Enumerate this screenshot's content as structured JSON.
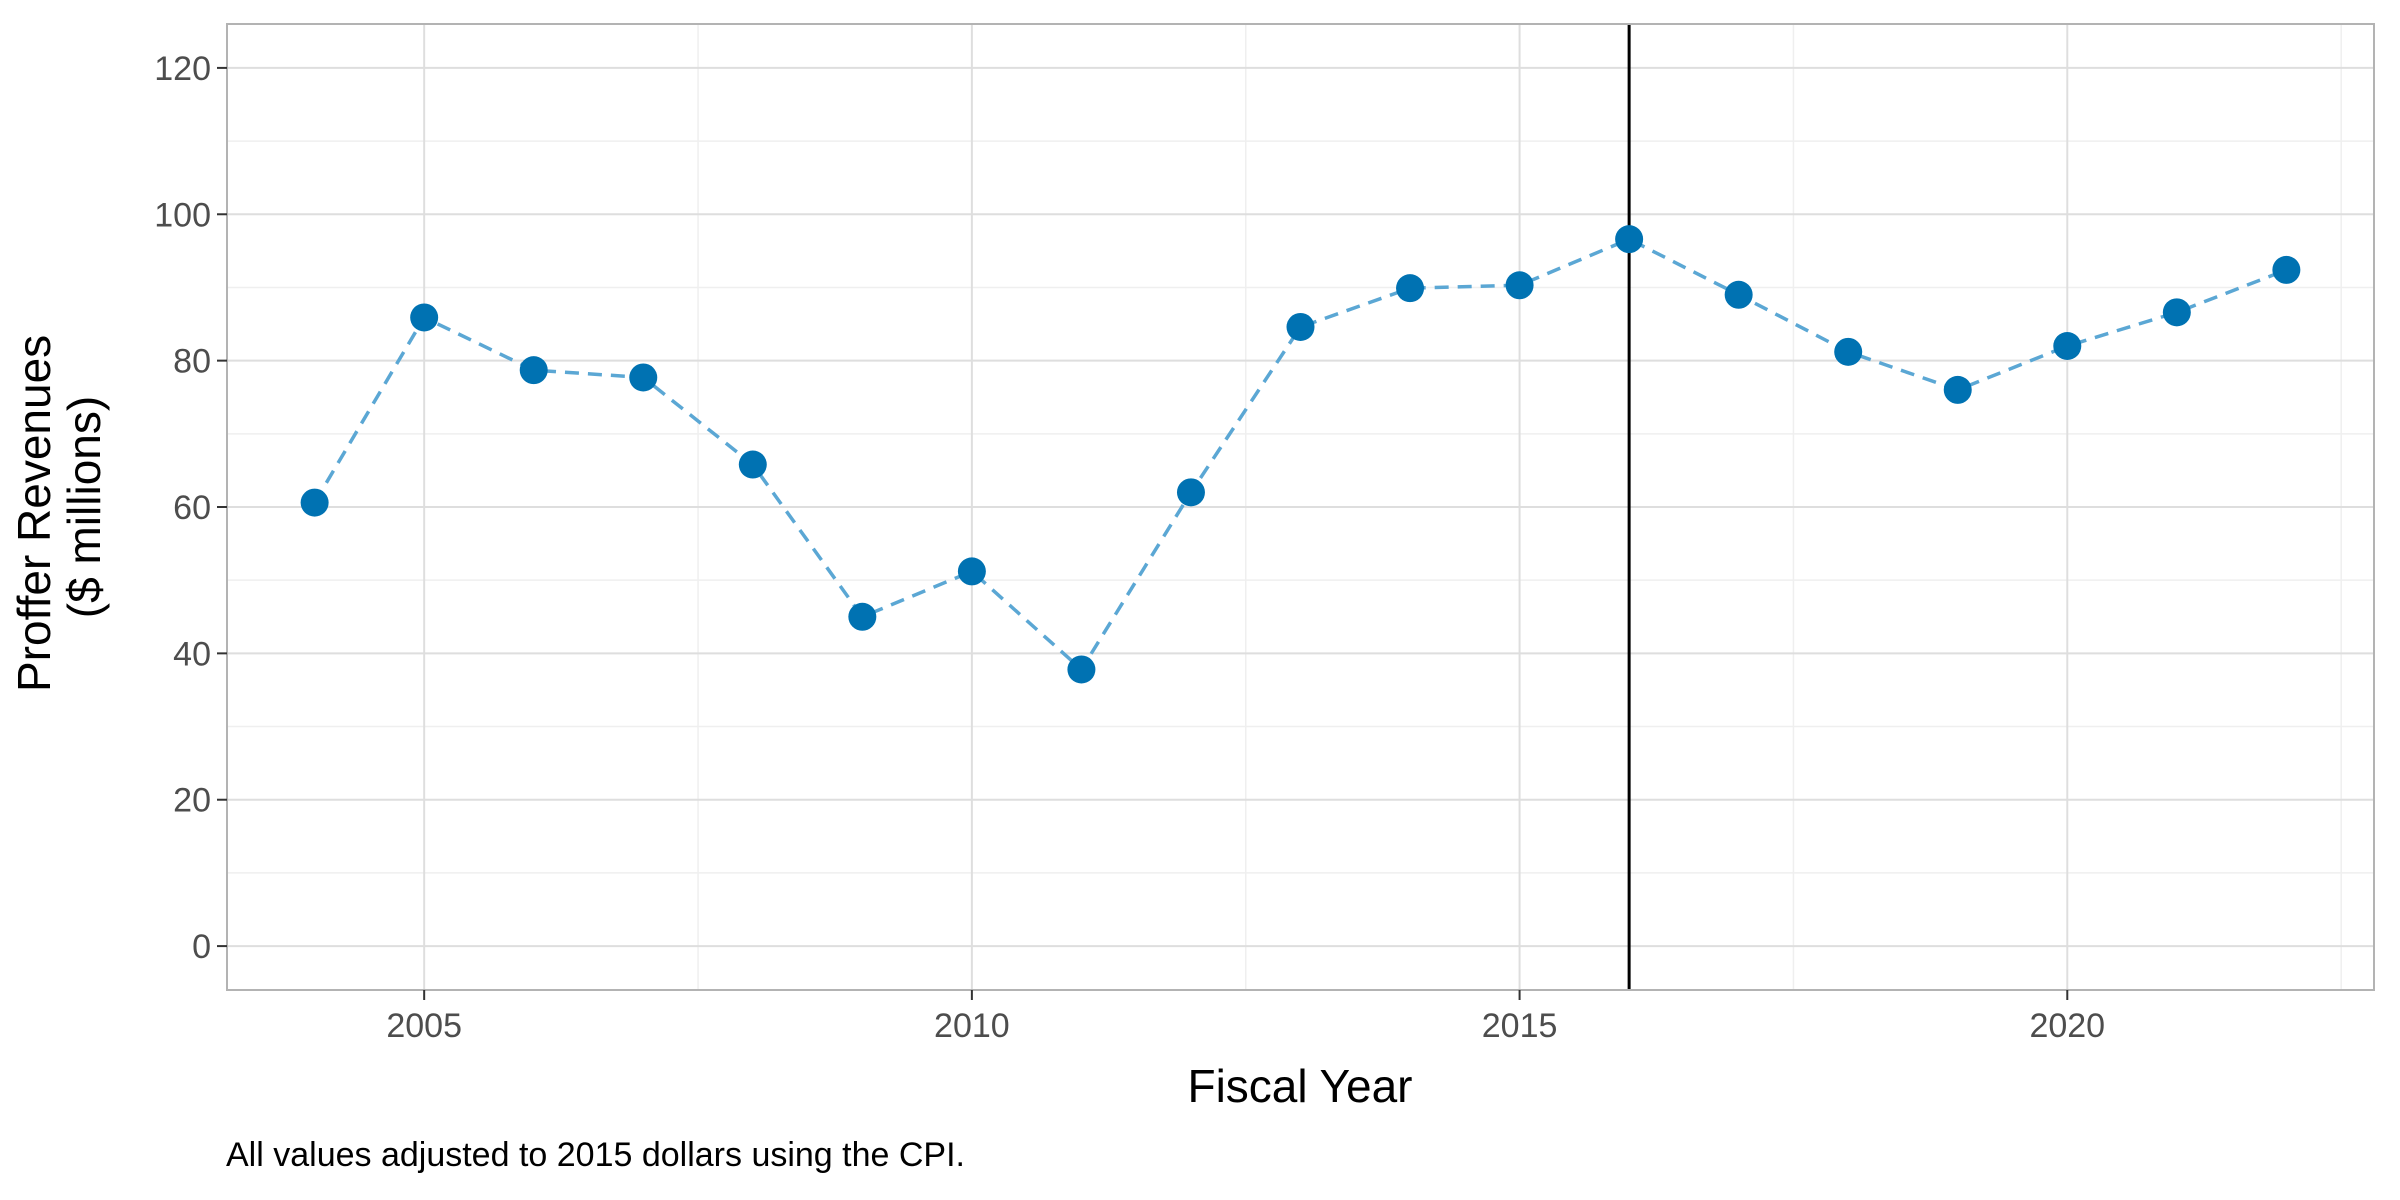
{
  "chart_data": {
    "type": "line",
    "xlabel": "Fiscal Year",
    "ylabel_lines": [
      "Proffer Revenues",
      "($ millions)"
    ],
    "caption": "All values adjusted to 2015 dollars using the CPI.",
    "x_ticks": [
      2005,
      2010,
      2015,
      2020
    ],
    "y_ticks": [
      0,
      20,
      40,
      60,
      80,
      100,
      120
    ],
    "xlim": [
      2003.2,
      2022.8
    ],
    "ylim": [
      -6,
      126
    ],
    "grid": true,
    "line_style": "dashed",
    "reference_line_x": 2016,
    "colors": {
      "point": "#0072b2",
      "line": "#5ba7d4",
      "reference": "#000000"
    },
    "series": [
      {
        "x": [
          2004,
          2005,
          2006,
          2007,
          2008,
          2009,
          2010,
          2011,
          2012,
          2013,
          2014,
          2015,
          2016,
          2017,
          2018,
          2019,
          2020,
          2021,
          2022
        ],
        "y": [
          60.6,
          85.9,
          78.7,
          77.7,
          65.8,
          45.0,
          51.2,
          37.8,
          62.0,
          84.6,
          89.9,
          90.3,
          96.6,
          89.0,
          81.2,
          76.0,
          82.0,
          86.6,
          92.4
        ]
      }
    ]
  }
}
